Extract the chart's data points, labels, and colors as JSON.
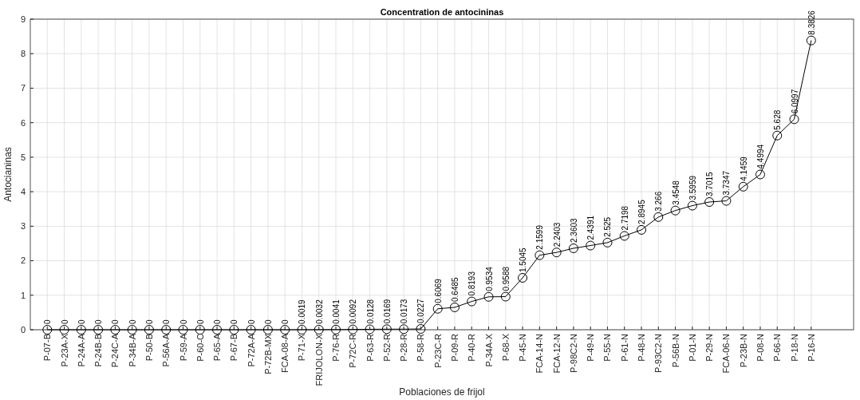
{
  "chart_data": {
    "type": "line",
    "title": "Concentration de antocininas",
    "xlabel": "Poblaciones de frijol",
    "ylabel": "Antocianinas",
    "categories": [
      "P-07-B",
      "P-23A-X",
      "P-24A-A",
      "P-24B-B",
      "P-24C-A",
      "P-34B-A",
      "P-50-B",
      "P-56A-A",
      "P-59-A",
      "P-60-C",
      "P-65-A",
      "P-67-B",
      "P-72A-A",
      "P-72B-MX",
      "FCA-08-A",
      "P-71-X",
      "FRIJOLON-X",
      "P-76-R",
      "P-72C-R",
      "P-63-R",
      "P-52-R",
      "P-28-R",
      "P-58-R",
      "P-23C-R",
      "P-09-R",
      "P-40-R",
      "P-34A-X",
      "P-68-X",
      "P-45-N",
      "FCA-14-N",
      "FCA-12-N",
      "P-98C2-N",
      "P-49-N",
      "P-55-N",
      "P-61-N",
      "P-48-N",
      "P-93C2-N",
      "P-56B-N",
      "P-01-N",
      "P-29-N",
      "FCA-06-N",
      "P-23B-N",
      "P-08-N",
      "P-66-N",
      "P-18-N",
      "P-16-N"
    ],
    "series": [
      {
        "color": "#000000",
        "values": [
          0,
          0,
          0,
          0,
          0,
          0,
          0,
          0,
          0,
          0,
          0,
          0,
          0,
          0,
          0,
          0.0019,
          0.0032,
          0.0041,
          0.0092,
          0.0128,
          0.0169,
          0.0173,
          0.0227,
          0.6069,
          0.6485,
          0.8193,
          0.9534,
          0.9588,
          1.5045,
          2.1599,
          2.2403,
          2.3603,
          2.4391,
          2.525,
          2.7198,
          2.8945,
          3.266,
          3.4548,
          3.5959,
          3.7015,
          3.7347,
          4.1459,
          4.4994,
          5.628,
          6.0997,
          8.3826
        ]
      }
    ],
    "ylim": [
      0,
      9
    ],
    "yticks": [
      0,
      1,
      2,
      3,
      4,
      5,
      6,
      7,
      8,
      9
    ],
    "grid": true,
    "marker": "circle",
    "line_style": "solid",
    "data_labels": true
  }
}
